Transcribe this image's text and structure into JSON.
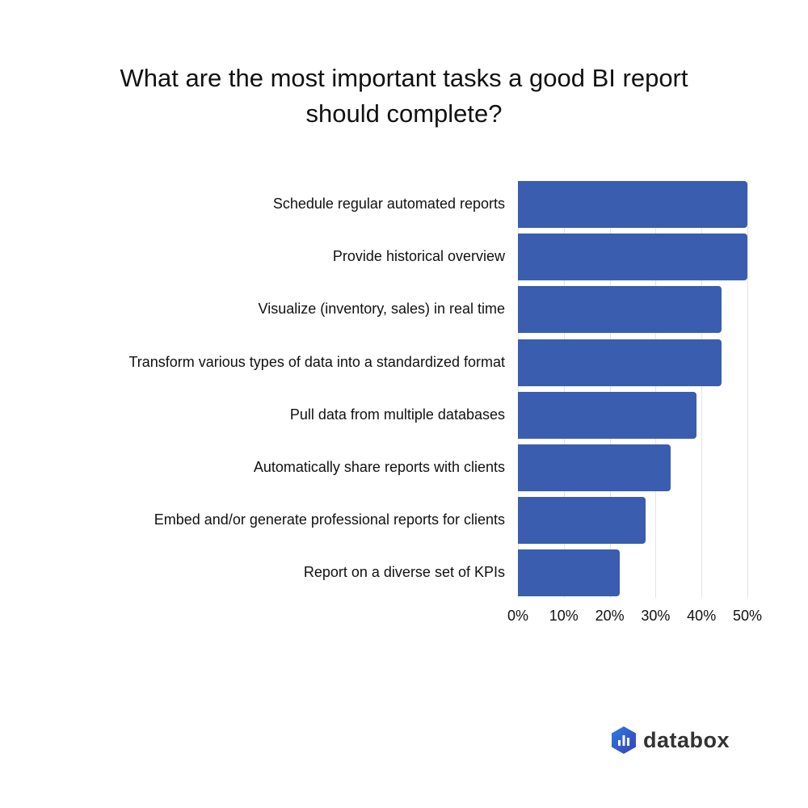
{
  "title_line1": "What are the most important tasks a good BI report",
  "title_line2": "should complete?",
  "brand": "databox",
  "colors": {
    "bar": "#3a5daf",
    "grid": "#e4e4e4"
  },
  "chart_data": {
    "type": "bar",
    "orientation": "horizontal",
    "title": "What are the most important tasks a good BI report should complete?",
    "categories": [
      "Schedule regular automated reports",
      "Provide historical overview",
      "Visualize (inventory, sales) in real time",
      "Transform various types of data into a standardized format",
      "Pull data from multiple databases",
      "Automatically share reports with clients",
      "Embed and/or generate professional reports for clients",
      "Report on a diverse set of KPIs"
    ],
    "values": [
      50,
      50,
      44.4,
      44.4,
      38.9,
      33.3,
      27.8,
      22.2
    ],
    "xlabel": "",
    "ylabel": "",
    "xlim": [
      0,
      50
    ],
    "ticks": [
      "0%",
      "10%",
      "20%",
      "30%",
      "40%",
      "50%"
    ],
    "grid": true,
    "legend": null
  }
}
